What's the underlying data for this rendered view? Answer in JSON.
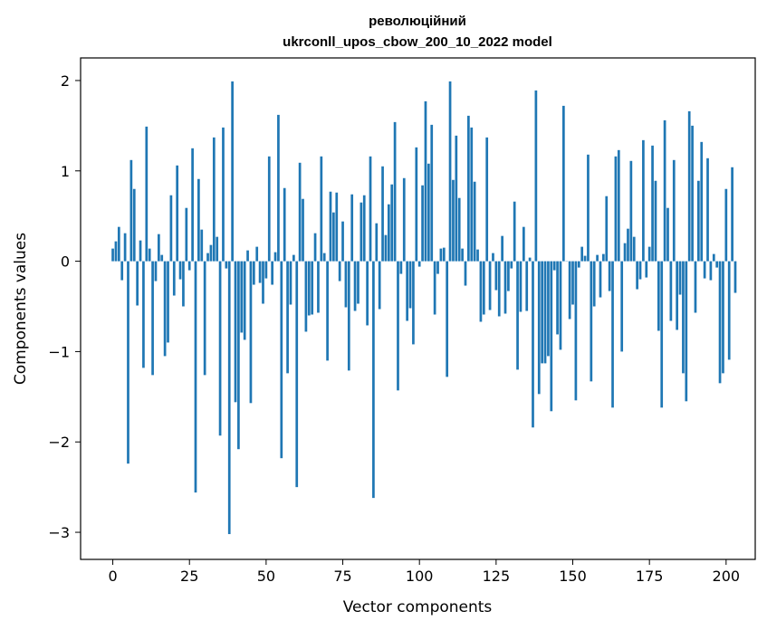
{
  "chart_data": {
    "type": "bar",
    "title": "революційний",
    "subtitle": "ukrconll_upos_cbow_200_10_2022 model",
    "xlabel": "Vector components",
    "ylabel": "Components values",
    "xlim": [
      -10.5,
      209.5
    ],
    "ylim": [
      -3.3,
      2.25
    ],
    "xticks": [
      0,
      25,
      50,
      75,
      100,
      125,
      150,
      175,
      200
    ],
    "yticks": [
      -3,
      -2,
      -1,
      0,
      1,
      2
    ],
    "ytick_labels": [
      "−3",
      "−2",
      "−1",
      "0",
      "1",
      "2"
    ],
    "grid": false,
    "color": "#1f77b4",
    "series": [
      {
        "values": [
          0.14,
          0.22,
          0.38,
          -0.21,
          0.31,
          -2.24,
          1.12,
          0.8,
          -0.49,
          0.23,
          -1.18,
          1.49,
          0.14,
          -1.26,
          -0.22,
          0.3,
          0.07,
          -1.05,
          -0.9,
          0.73,
          -0.38,
          1.06,
          -0.2,
          -0.5,
          0.59,
          -0.1,
          1.25,
          -2.56,
          0.91,
          0.35,
          -1.26,
          0.09,
          0.18,
          1.37,
          0.27,
          -1.93,
          1.48,
          -0.08,
          -3.02,
          1.99,
          -1.56,
          -2.08,
          -0.79,
          -0.87,
          0.12,
          -1.57,
          -0.26,
          0.16,
          -0.24,
          -0.47,
          -0.19,
          1.16,
          -0.26,
          0.1,
          1.62,
          -2.18,
          0.81,
          -1.24,
          -0.48,
          0.07,
          -2.5,
          1.09,
          0.69,
          -0.78,
          -0.6,
          -0.59,
          0.31,
          -0.57,
          1.16,
          0.09,
          -1.1,
          0.77,
          0.54,
          0.76,
          -0.22,
          0.44,
          -0.51,
          -1.21,
          0.74,
          -0.55,
          -0.47,
          0.65,
          0.73,
          -0.71,
          1.16,
          -2.62,
          0.42,
          -0.53,
          1.05,
          0.29,
          0.63,
          0.85,
          1.54,
          -1.43,
          -0.14,
          0.92,
          -0.66,
          -0.52,
          -0.92,
          1.26,
          -0.06,
          0.84,
          1.77,
          1.08,
          1.51,
          -0.59,
          -0.14,
          0.14,
          0.15,
          -1.28,
          1.99,
          0.9,
          1.39,
          0.7,
          0.14,
          -0.27,
          1.61,
          1.48,
          0.88,
          0.13,
          -0.67,
          -0.59,
          1.37,
          -0.54,
          0.09,
          -0.32,
          -0.61,
          0.28,
          -0.58,
          -0.33,
          -0.08,
          0.66,
          -1.2,
          -0.56,
          0.38,
          -0.55,
          0.04,
          -1.84,
          1.89,
          -1.47,
          -1.13,
          -1.13,
          -1.05,
          -1.66,
          -0.1,
          -0.81,
          -0.98,
          1.72,
          0.0,
          -0.64,
          -0.48,
          -1.54,
          -0.07,
          0.16,
          0.06,
          1.18,
          -1.33,
          -0.5,
          0.07,
          -0.4,
          0.08,
          0.72,
          -0.33,
          -1.62,
          1.16,
          1.23,
          -1.0,
          0.2,
          0.36,
          1.11,
          0.27,
          -0.31,
          -0.2,
          1.34,
          -0.18,
          0.16,
          1.28,
          0.89,
          -0.77,
          -1.62,
          1.56,
          0.59,
          -0.66,
          1.12,
          -0.76,
          -0.37,
          -1.24,
          -1.55,
          1.66,
          1.5,
          -0.57,
          0.89,
          1.32,
          -0.19,
          1.14,
          -0.21,
          0.08,
          -0.07,
          -1.35,
          -1.24,
          0.8,
          -1.09,
          1.04,
          -0.35
        ]
      }
    ]
  }
}
